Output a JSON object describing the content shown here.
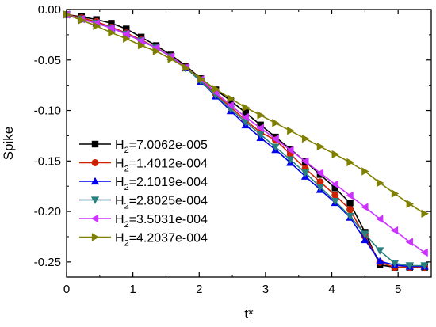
{
  "chart_data": {
    "type": "line",
    "xlabel": "t*",
    "ylabel": "Spike",
    "xlim": [
      0,
      5.5
    ],
    "ylim": [
      -0.265,
      0.0
    ],
    "xticks": [
      0,
      1,
      2,
      3,
      4,
      5
    ],
    "xtick_labels": [
      "0",
      "1",
      "2",
      "3",
      "4",
      "5"
    ],
    "yticks": [
      0.0,
      -0.05,
      -0.1,
      -0.15,
      -0.2,
      -0.25
    ],
    "ytick_labels": [
      "0.00",
      "-0.05",
      "-0.10",
      "-0.15",
      "-0.20",
      "-0.25"
    ],
    "grid": false,
    "legend_position": "lower-left",
    "series": [
      {
        "name": "7.0062e-005",
        "legend_prefix": "H",
        "legend_subscript": "2",
        "color": "#000000",
        "marker": "square",
        "x": [
          0,
          0.225,
          0.45,
          0.675,
          0.9,
          1.125,
          1.35,
          1.575,
          1.8,
          2.025,
          2.25,
          2.475,
          2.7,
          2.925,
          3.15,
          3.375,
          3.6,
          3.825,
          4.05,
          4.275,
          4.5,
          4.725,
          4.95,
          5.175,
          5.4
        ],
        "y": [
          -0.005,
          -0.0072,
          -0.0099,
          -0.0136,
          -0.0192,
          -0.0273,
          -0.0357,
          -0.045,
          -0.0559,
          -0.0684,
          -0.0795,
          -0.0904,
          -0.1022,
          -0.1143,
          -0.1263,
          -0.1382,
          -0.1506,
          -0.1634,
          -0.1767,
          -0.1915,
          -0.2206,
          -0.2529,
          -0.2553,
          -0.2553,
          -0.2553
        ]
      },
      {
        "name": "1.4012e-004",
        "legend_prefix": "H",
        "legend_subscript": "2",
        "color": "#cc2200",
        "marker": "circle",
        "x": [
          0,
          0.225,
          0.45,
          0.675,
          0.9,
          1.125,
          1.35,
          1.575,
          1.8,
          2.025,
          2.25,
          2.475,
          2.7,
          2.925,
          3.15,
          3.375,
          3.6,
          3.825,
          4.05,
          4.275,
          4.5,
          4.725,
          4.95,
          5.175,
          5.4
        ],
        "y": [
          -0.005,
          -0.0082,
          -0.0121,
          -0.0175,
          -0.0232,
          -0.0301,
          -0.0378,
          -0.0463,
          -0.0572,
          -0.0699,
          -0.0837,
          -0.0967,
          -0.1097,
          -0.1216,
          -0.1292,
          -0.1432,
          -0.1574,
          -0.1707,
          -0.1838,
          -0.1981,
          -0.2247,
          -0.2503,
          -0.2553,
          -0.2553,
          -0.2553
        ]
      },
      {
        "name": "2.1019e-004",
        "legend_prefix": "H",
        "legend_subscript": "2",
        "color": "#0000ee",
        "marker": "triangle-up",
        "x": [
          0,
          0.225,
          0.45,
          0.675,
          0.9,
          1.125,
          1.35,
          1.575,
          1.8,
          2.025,
          2.25,
          2.475,
          2.7,
          2.925,
          3.15,
          3.375,
          3.6,
          3.825,
          4.05,
          4.275,
          4.5,
          4.725,
          4.95,
          5.175,
          5.4
        ],
        "y": [
          -0.005,
          -0.0094,
          -0.0136,
          -0.0183,
          -0.0243,
          -0.0309,
          -0.038,
          -0.0467,
          -0.0579,
          -0.0712,
          -0.0858,
          -0.1004,
          -0.1144,
          -0.1269,
          -0.1388,
          -0.1516,
          -0.1652,
          -0.1783,
          -0.1913,
          -0.2059,
          -0.2281,
          -0.2493,
          -0.2531,
          -0.2544,
          -0.2544
        ]
      },
      {
        "name": "2.8025e-004",
        "legend_prefix": "H",
        "legend_subscript": "2",
        "color": "#2a7f7f",
        "marker": "triangle-down",
        "x": [
          0,
          0.225,
          0.45,
          0.675,
          0.9,
          1.125,
          1.35,
          1.575,
          1.8,
          2.025,
          2.25,
          2.475,
          2.7,
          2.925,
          3.15,
          3.375,
          3.6,
          3.825,
          4.05,
          4.275,
          4.5,
          4.725,
          4.95,
          5.175,
          5.4
        ],
        "y": [
          -0.005,
          -0.0094,
          -0.0136,
          -0.0183,
          -0.0243,
          -0.0309,
          -0.038,
          -0.0467,
          -0.0579,
          -0.0712,
          -0.0849,
          -0.0987,
          -0.1115,
          -0.1237,
          -0.1362,
          -0.1487,
          -0.1617,
          -0.1758,
          -0.1899,
          -0.2047,
          -0.2224,
          -0.2388,
          -0.2514,
          -0.2536,
          -0.2536
        ]
      },
      {
        "name": "3.5031e-004",
        "legend_prefix": "H",
        "legend_subscript": "2",
        "color": "#cc33ff",
        "marker": "triangle-left",
        "x": [
          0,
          0.225,
          0.45,
          0.675,
          0.9,
          1.125,
          1.35,
          1.575,
          1.8,
          2.025,
          2.25,
          2.475,
          2.7,
          2.925,
          3.15,
          3.375,
          3.6,
          3.825,
          4.05,
          4.275,
          4.5,
          4.725,
          4.95,
          5.175,
          5.4
        ],
        "y": [
          -0.005,
          -0.0094,
          -0.0136,
          -0.0183,
          -0.0243,
          -0.0309,
          -0.038,
          -0.0465,
          -0.0572,
          -0.0691,
          -0.0821,
          -0.0949,
          -0.1066,
          -0.1174,
          -0.1281,
          -0.1392,
          -0.1503,
          -0.1619,
          -0.1731,
          -0.1842,
          -0.1957,
          -0.2074,
          -0.2188,
          -0.2302,
          -0.2406
        ]
      },
      {
        "name": "4.2037e-004",
        "legend_prefix": "H",
        "legend_subscript": "2",
        "color": "#808000",
        "marker": "triangle-right",
        "x": [
          0,
          0.225,
          0.45,
          0.675,
          0.9,
          1.125,
          1.35,
          1.575,
          1.8,
          2.025,
          2.25,
          2.475,
          2.7,
          2.925,
          3.15,
          3.375,
          3.6,
          3.825,
          4.05,
          4.275,
          4.5,
          4.725,
          4.95,
          5.175,
          5.4
        ],
        "y": [
          -0.005,
          -0.0106,
          -0.0163,
          -0.0229,
          -0.0289,
          -0.0354,
          -0.0413,
          -0.049,
          -0.0577,
          -0.0688,
          -0.0788,
          -0.0882,
          -0.0971,
          -0.1047,
          -0.1124,
          -0.1201,
          -0.1279,
          -0.1357,
          -0.1434,
          -0.1513,
          -0.1603,
          -0.1717,
          -0.1823,
          -0.1926,
          -0.2021
        ]
      }
    ]
  }
}
